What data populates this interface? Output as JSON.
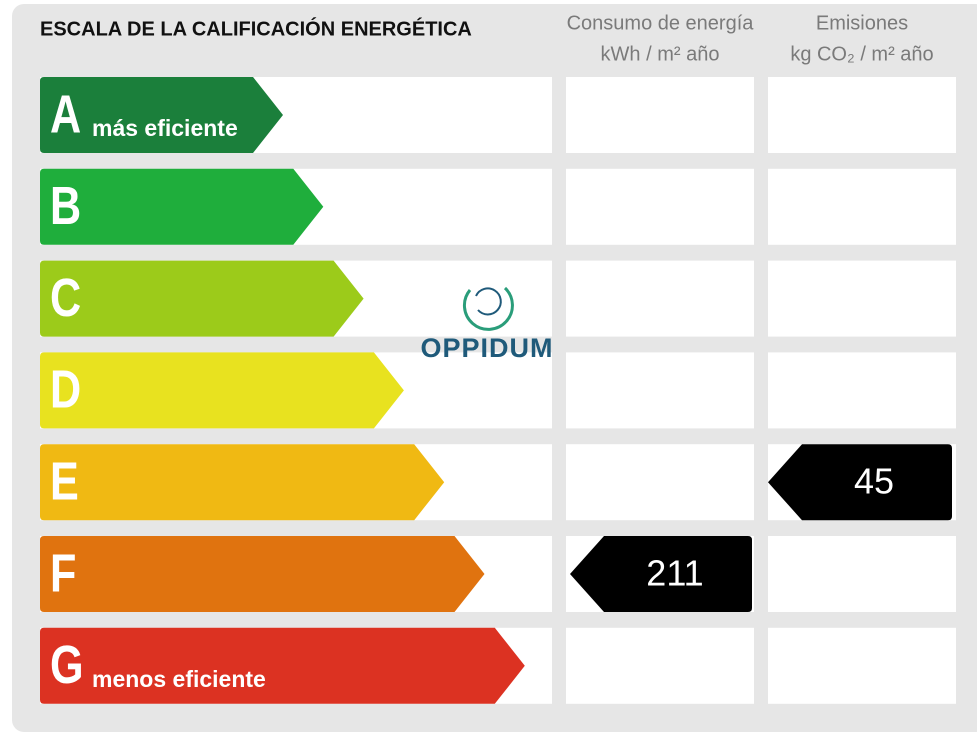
{
  "title": "ESCALA DE LA CALIFICACIÓN ENERGÉTICA",
  "columns": [
    {
      "title": "Consumo de energía",
      "unit": "kWh / m² año"
    },
    {
      "title": "Emisiones",
      "unit": "kg CO₂ / m² año"
    }
  ],
  "ratings": [
    {
      "letter": "A",
      "label": "más eficiente",
      "color": "#1b7f3b"
    },
    {
      "letter": "B",
      "color": "#1fae3c"
    },
    {
      "letter": "C",
      "color": "#9ccb1a"
    },
    {
      "letter": "D",
      "color": "#e8e21f"
    },
    {
      "letter": "E",
      "color": "#f0b913"
    },
    {
      "letter": "F",
      "color": "#e0730f"
    },
    {
      "letter": "G",
      "label": "menos eficiente",
      "color": "#dc3222"
    }
  ],
  "consumption": {
    "rating": "F",
    "value": 211
  },
  "emissions": {
    "rating": "E",
    "value": 45
  },
  "watermark": "OPPIDUM"
}
